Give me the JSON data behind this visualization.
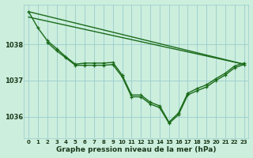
{
  "title": "Graphe pression niveau de la mer (hPa)",
  "bg_color": "#cceedd",
  "grid_color": "#99cccc",
  "line_color": "#1a6b1a",
  "xlim": [
    -0.5,
    23.5
  ],
  "ylim": [
    1035.4,
    1039.1
  ],
  "yticks": [
    1036,
    1037,
    1038
  ],
  "x_labels": [
    "0",
    "1",
    "2",
    "3",
    "4",
    "5",
    "6",
    "7",
    "8",
    "9",
    "10",
    "11",
    "12",
    "13",
    "14",
    "15",
    "16",
    "17",
    "18",
    "19",
    "20",
    "21",
    "22",
    "23"
  ],
  "series": [
    {
      "x": [
        0,
        23
      ],
      "y": [
        1038.9,
        1037.45
      ],
      "marker": false,
      "lw": 1.0
    },
    {
      "x": [
        0,
        23
      ],
      "y": [
        1038.75,
        1037.45
      ],
      "marker": false,
      "lw": 1.0
    },
    {
      "x": [
        0,
        1,
        2,
        3,
        4,
        5,
        6,
        7,
        8,
        9,
        10,
        11,
        12,
        13,
        14,
        15,
        16,
        17,
        18,
        19,
        20,
        21,
        22,
        23
      ],
      "y": [
        1038.9,
        1038.45,
        1038.1,
        1037.88,
        1037.65,
        1037.45,
        1037.48,
        1037.48,
        1037.48,
        1037.5,
        1037.15,
        1036.6,
        1036.6,
        1036.4,
        1036.3,
        1035.85,
        1036.1,
        1036.65,
        1036.78,
        1036.88,
        1037.05,
        1037.2,
        1037.4,
        1037.48
      ],
      "marker": true,
      "lw": 1.0
    },
    {
      "x": [
        2,
        3,
        4,
        5,
        6,
        7,
        8,
        9,
        10,
        11,
        12,
        13,
        14,
        15,
        16,
        17,
        18,
        19,
        20,
        21,
        22,
        23
      ],
      "y": [
        1038.05,
        1037.82,
        1037.62,
        1037.42,
        1037.42,
        1037.42,
        1037.42,
        1037.44,
        1037.1,
        1036.55,
        1036.55,
        1036.35,
        1036.25,
        1035.82,
        1036.05,
        1036.6,
        1036.72,
        1036.82,
        1037.0,
        1037.15,
        1037.35,
        1037.44
      ],
      "marker": true,
      "lw": 1.0
    }
  ]
}
